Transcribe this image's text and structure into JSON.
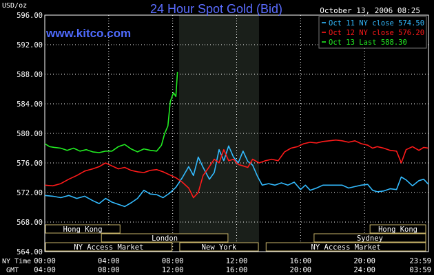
{
  "header": {
    "title": "24 Hour Spot Gold (Bid)",
    "timestamp": "October 13, 2006 08:25",
    "units": "USD/oz",
    "watermark": "www.kitco.com"
  },
  "colors": {
    "background": "#000000",
    "grid": "#ffffff",
    "axis_text": "#ffffff",
    "title": "#5a6cff",
    "watermark": "#4f6bff",
    "session_box_fill": "#000000",
    "session_box_border": "#c9b56a",
    "session_text": "#ffffff",
    "shade": "#1a1f1a"
  },
  "time_rows": {
    "ny_label": "NY Time",
    "gmt_label": "GMT",
    "ny_ticks": [
      "00:00",
      "04:00",
      "08:00",
      "12:00",
      "16:00",
      "20:00",
      "23:59"
    ],
    "gmt_ticks": [
      "04:00",
      "08:00",
      "12:00",
      "16:00",
      "20:00",
      "24:00",
      "03:59"
    ]
  },
  "sessions": [
    {
      "label": "Hong Kong",
      "start": 0.0,
      "end": 4.75,
      "row": 0
    },
    {
      "label": "Hong Kong",
      "start": 20.3,
      "end": 24.0,
      "row": 0
    },
    {
      "label": "London",
      "start": 3.5,
      "end": 11.5,
      "row": 1
    },
    {
      "label": "Sydney",
      "start": 16.8,
      "end": 24.0,
      "row": 1
    },
    {
      "label": "NY Access Market",
      "start": 0.0,
      "end": 8.0,
      "row": 2
    },
    {
      "label": "New York",
      "start": 8.4,
      "end": 13.4,
      "row": 2
    },
    {
      "label": "NY Access Market",
      "start": 13.8,
      "end": 24.0,
      "row": 2
    }
  ],
  "chart_data": {
    "type": "line",
    "title": "24 Hour Spot Gold (Bid)",
    "ylabel": "USD/oz",
    "xlabel": "NY Time",
    "xlim": [
      0,
      24
    ],
    "ylim": [
      564,
      596
    ],
    "yticks": [
      "564.00",
      "568.00",
      "572.00",
      "576.00",
      "580.00",
      "584.00",
      "588.00",
      "592.00",
      "596.00"
    ],
    "shaded_region": [
      8.4,
      13.4
    ],
    "grid": true,
    "legend_position": "top-right",
    "series": [
      {
        "name": "Oct 11 NY close 574.50",
        "color": "#33bbff",
        "points": [
          [
            0,
            571.6
          ],
          [
            0.5,
            571.5
          ],
          [
            1.0,
            571.3
          ],
          [
            1.5,
            571.6
          ],
          [
            2.0,
            571.2
          ],
          [
            2.5,
            571.5
          ],
          [
            3.0,
            570.9
          ],
          [
            3.4,
            570.5
          ],
          [
            3.8,
            571.2
          ],
          [
            4.2,
            570.7
          ],
          [
            4.6,
            570.4
          ],
          [
            5.0,
            570.1
          ],
          [
            5.4,
            570.6
          ],
          [
            5.8,
            571.2
          ],
          [
            6.2,
            572.3
          ],
          [
            6.6,
            571.8
          ],
          [
            7.0,
            571.7
          ],
          [
            7.4,
            571.3
          ],
          [
            7.8,
            571.9
          ],
          [
            8.2,
            572.7
          ],
          [
            8.6,
            574.0
          ],
          [
            9.0,
            575.5
          ],
          [
            9.3,
            574.3
          ],
          [
            9.6,
            576.8
          ],
          [
            9.9,
            575.4
          ],
          [
            10.3,
            573.8
          ],
          [
            10.6,
            574.7
          ],
          [
            10.9,
            577.8
          ],
          [
            11.2,
            576.3
          ],
          [
            11.5,
            578.3
          ],
          [
            11.8,
            576.8
          ],
          [
            12.1,
            576.0
          ],
          [
            12.4,
            577.6
          ],
          [
            12.7,
            576.2
          ],
          [
            13.0,
            575.7
          ],
          [
            13.3,
            574.2
          ],
          [
            13.6,
            573.0
          ],
          [
            14.0,
            573.2
          ],
          [
            14.4,
            573.0
          ],
          [
            14.8,
            573.3
          ],
          [
            15.2,
            573.0
          ],
          [
            15.6,
            573.4
          ],
          [
            16.0,
            572.4
          ],
          [
            16.3,
            573.0
          ],
          [
            16.6,
            572.3
          ],
          [
            17.0,
            572.6
          ],
          [
            17.4,
            573.0
          ],
          [
            17.8,
            573.0
          ],
          [
            18.2,
            573.0
          ],
          [
            18.6,
            573.0
          ],
          [
            19.0,
            572.6
          ],
          [
            19.4,
            572.8
          ],
          [
            19.8,
            573.0
          ],
          [
            20.2,
            573.1
          ],
          [
            20.5,
            572.3
          ],
          [
            20.8,
            572.1
          ],
          [
            21.2,
            572.2
          ],
          [
            21.6,
            572.5
          ],
          [
            22.0,
            572.4
          ],
          [
            22.3,
            574.1
          ],
          [
            22.6,
            573.7
          ],
          [
            23.0,
            572.9
          ],
          [
            23.4,
            573.6
          ],
          [
            23.7,
            573.8
          ],
          [
            24.0,
            573.1
          ]
        ]
      },
      {
        "name": "Oct 12 NY close 576.20",
        "color": "#ff1a1a",
        "points": [
          [
            0,
            573.0
          ],
          [
            0.5,
            572.9
          ],
          [
            1.0,
            573.2
          ],
          [
            1.5,
            573.8
          ],
          [
            2.0,
            574.3
          ],
          [
            2.5,
            574.9
          ],
          [
            3.0,
            575.2
          ],
          [
            3.4,
            575.5
          ],
          [
            3.8,
            576.0
          ],
          [
            4.2,
            575.6
          ],
          [
            4.6,
            575.2
          ],
          [
            5.0,
            575.4
          ],
          [
            5.4,
            575.0
          ],
          [
            5.8,
            574.8
          ],
          [
            6.2,
            574.7
          ],
          [
            6.6,
            575.0
          ],
          [
            7.0,
            575.1
          ],
          [
            7.4,
            574.8
          ],
          [
            7.8,
            574.4
          ],
          [
            8.2,
            574.0
          ],
          [
            8.6,
            573.4
          ],
          [
            9.0,
            572.6
          ],
          [
            9.3,
            571.3
          ],
          [
            9.6,
            572.0
          ],
          [
            9.9,
            574.3
          ],
          [
            10.2,
            575.2
          ],
          [
            10.6,
            576.5
          ],
          [
            10.9,
            576.0
          ],
          [
            11.2,
            577.8
          ],
          [
            11.5,
            576.3
          ],
          [
            11.8,
            576.5
          ],
          [
            12.1,
            575.8
          ],
          [
            12.4,
            575.6
          ],
          [
            12.7,
            575.4
          ],
          [
            13.0,
            576.5
          ],
          [
            13.4,
            576.0
          ],
          [
            13.8,
            576.3
          ],
          [
            14.2,
            576.5
          ],
          [
            14.6,
            576.3
          ],
          [
            15.0,
            577.5
          ],
          [
            15.4,
            578.0
          ],
          [
            15.8,
            578.2
          ],
          [
            16.2,
            578.6
          ],
          [
            16.6,
            578.8
          ],
          [
            17.0,
            578.7
          ],
          [
            17.4,
            578.9
          ],
          [
            17.8,
            579.0
          ],
          [
            18.2,
            579.1
          ],
          [
            18.6,
            579.0
          ],
          [
            19.0,
            578.8
          ],
          [
            19.4,
            579.0
          ],
          [
            19.8,
            578.6
          ],
          [
            20.2,
            578.4
          ],
          [
            20.5,
            578.0
          ],
          [
            20.8,
            578.2
          ],
          [
            21.2,
            578.0
          ],
          [
            21.6,
            577.7
          ],
          [
            22.0,
            577.6
          ],
          [
            22.3,
            576.0
          ],
          [
            22.6,
            577.8
          ],
          [
            23.0,
            578.2
          ],
          [
            23.4,
            577.7
          ],
          [
            23.7,
            578.1
          ],
          [
            24.0,
            578.0
          ]
        ]
      },
      {
        "name": "Oct 13 Last 588.30",
        "color": "#22ee22",
        "points": [
          [
            0,
            578.6
          ],
          [
            0.3,
            578.2
          ],
          [
            0.6,
            578.1
          ],
          [
            1.0,
            578.0
          ],
          [
            1.4,
            577.7
          ],
          [
            1.8,
            578.0
          ],
          [
            2.2,
            577.6
          ],
          [
            2.6,
            577.8
          ],
          [
            3.0,
            577.5
          ],
          [
            3.4,
            577.4
          ],
          [
            3.8,
            577.6
          ],
          [
            4.2,
            577.6
          ],
          [
            4.6,
            578.2
          ],
          [
            5.0,
            578.5
          ],
          [
            5.4,
            577.9
          ],
          [
            5.8,
            577.5
          ],
          [
            6.2,
            577.9
          ],
          [
            6.6,
            577.7
          ],
          [
            7.0,
            577.6
          ],
          [
            7.3,
            578.4
          ],
          [
            7.5,
            580.0
          ],
          [
            7.7,
            581.0
          ],
          [
            7.85,
            584.3
          ],
          [
            8.05,
            585.5
          ],
          [
            8.2,
            585.0
          ],
          [
            8.3,
            588.3
          ]
        ]
      }
    ]
  }
}
